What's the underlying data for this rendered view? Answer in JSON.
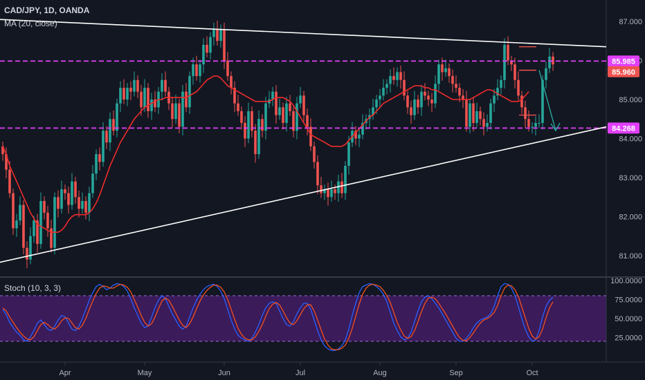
{
  "header": {
    "symbol_line": "CAD/JPY, 1D, OANDA",
    "ma_label": "MA (20, close)",
    "stoch_label": "Stoch (10, 3, 3)"
  },
  "colors": {
    "background": "#131722",
    "up_candle": "#26a69a",
    "down_candle": "#ef5350",
    "ma_line": "#ef2b2b",
    "trendline": "#ffffff",
    "level_line": "#e040fb",
    "arrow": "#26a69a",
    "target_marker": "#ef5350",
    "stoch_k": "#2962ff",
    "stoch_d": "#f4511e",
    "stoch_band": "#4a1d6e",
    "axis_text": "#b2b5be"
  },
  "chart_data": [
    {
      "type": "candlestick",
      "title": "CAD/JPY, 1D, OANDA",
      "overlay": "MA (20, close)",
      "ylim": [
        80.6,
        87.4
      ],
      "y_ticks": [
        "87.000",
        "86.000",
        "85.000",
        "84.000",
        "83.000",
        "82.000",
        "81.000"
      ],
      "x_ticks": [
        "Apr",
        "May",
        "Jun",
        "Jul",
        "Aug",
        "Sep",
        "Oct"
      ],
      "price_labels": [
        {
          "label": "85.985",
          "value": 85.985
        },
        {
          "label": "85.960",
          "value": 85.96
        },
        {
          "label": "84.268",
          "value": 84.268
        }
      ],
      "levels": [
        85.985,
        84.268
      ],
      "close": [
        83.6,
        83.2,
        82.6,
        81.7,
        81.9,
        82.3,
        81.2,
        80.9,
        81.5,
        81.9,
        81.3,
        82.4,
        82.1,
        81.7,
        81.2,
        82.5,
        82.2,
        82.7,
        82.6,
        82.3,
        82.9,
        82.5,
        82.2,
        82.4,
        82.1,
        82.6,
        83.1,
        83.6,
        83.4,
        84.2,
        83.9,
        84.5,
        84.2,
        84.9,
        85.3,
        85.0,
        85.3,
        85.2,
        85.5,
        85.2,
        84.8,
        85.3,
        84.7,
        85.0,
        84.8,
        85.2,
        85.5,
        85.2,
        84.9,
        84.5,
        84.9,
        84.3,
        85.2,
        84.8,
        85.6,
        85.9,
        85.6,
        85.9,
        86.4,
        86.2,
        86.6,
        86.8,
        86.5,
        86.8,
        86.0,
        85.6,
        85.3,
        84.9,
        84.7,
        84.4,
        84.0,
        84.7,
        84.2,
        83.6,
        84.5,
        84.2,
        84.9,
        85.0,
        85.2,
        84.6,
        84.8,
        84.4,
        84.9,
        84.7,
        84.2,
        84.9,
        85.1,
        84.6,
        84.3,
        83.8,
        83.4,
        82.8,
        82.6,
        82.7,
        82.5,
        82.7,
        82.6,
        82.9,
        82.6,
        83.3,
        83.9,
        84.2,
        84.0,
        84.1,
        84.4,
        84.5,
        84.6,
        84.8,
        85.0,
        85.1,
        85.3,
        85.4,
        85.6,
        85.5,
        85.7,
        85.5,
        85.1,
        84.8,
        84.6,
        85.0,
        84.8,
        85.2,
        85.1,
        85.0,
        84.9,
        85.4,
        85.9,
        85.7,
        85.8,
        85.6,
        85.4,
        85.3,
        85.1,
        85.0,
        84.3,
        84.9,
        84.4,
        84.7,
        84.5,
        84.3,
        84.4,
        84.9,
        85.1,
        85.3,
        85.5,
        86.4,
        86.0,
        85.9,
        85.5,
        85.1,
        84.8,
        84.5,
        84.3,
        84.3,
        84.4,
        84.4,
        85.5,
        85.8,
        86.1,
        85.9
      ],
      "ma": [
        83.8,
        83.6,
        83.3,
        83.1,
        82.9,
        82.7,
        82.5,
        82.3,
        82.1,
        81.95,
        81.8,
        81.75,
        81.7,
        81.65,
        81.6,
        81.6,
        81.6,
        81.65,
        81.75,
        81.9,
        82.0,
        82.05,
        82.05,
        82.05,
        82.05,
        82.1,
        82.2,
        82.35,
        82.55,
        82.8,
        83.05,
        83.3,
        83.5,
        83.7,
        83.9,
        84.05,
        84.2,
        84.35,
        84.5,
        84.6,
        84.7,
        84.8,
        84.85,
        84.9,
        84.95,
        85.0,
        85.0,
        85.05,
        85.05,
        85.05,
        85.05,
        85.05,
        85.05,
        85.05,
        85.1,
        85.15,
        85.2,
        85.3,
        85.4,
        85.5,
        85.55,
        85.6,
        85.6,
        85.55,
        85.45,
        85.35,
        85.3,
        85.25,
        85.2,
        85.15,
        85.1,
        85.05,
        85.0,
        84.95,
        84.95,
        84.95,
        84.95,
        84.95,
        85.0,
        85.05,
        85.05,
        85.05,
        85.0,
        84.95,
        84.85,
        84.7,
        84.55,
        84.4,
        84.25,
        84.1,
        84.05,
        84.0,
        83.95,
        83.9,
        83.85,
        83.8,
        83.8,
        83.8,
        83.8,
        83.85,
        83.95,
        84.05,
        84.15,
        84.25,
        84.35,
        84.45,
        84.55,
        84.6,
        84.7,
        84.8,
        84.9,
        84.95,
        85.0,
        85.05,
        85.1,
        85.15,
        85.2,
        85.25,
        85.3,
        85.35,
        85.35,
        85.35,
        85.3,
        85.3,
        85.25,
        85.25,
        85.2,
        85.15,
        85.1,
        85.05,
        85.0,
        85.0,
        85.0,
        85.0,
        85.0,
        85.0,
        85.05,
        85.1,
        85.15,
        85.2,
        85.25,
        85.25,
        85.2,
        85.15,
        85.1,
        85.05,
        85.0,
        84.95,
        84.95,
        84.95,
        85.0,
        85.1,
        85.2
      ]
    },
    {
      "type": "line",
      "title": "Stoch (10, 3, 3)",
      "ylim": [
        0,
        100
      ],
      "y_ticks": [
        "100.0000",
        "75.0000",
        "50.0000",
        "25.0000"
      ],
      "band": [
        20,
        80
      ],
      "series": [
        {
          "values": [
            62,
            55,
            45,
            38,
            32,
            28,
            22,
            20,
            26,
            34,
            44,
            48,
            42,
            36,
            34,
            40,
            48,
            54,
            52,
            44,
            36,
            34,
            40,
            50,
            62,
            74,
            84,
            92,
            95,
            92,
            88,
            90,
            94,
            96,
            95,
            92,
            86,
            76,
            64,
            54,
            44,
            38,
            40,
            52,
            64,
            74,
            80,
            76,
            66,
            56,
            48,
            40,
            36,
            40,
            52,
            64,
            74,
            82,
            88,
            92,
            94,
            95,
            92,
            86,
            76,
            62,
            48,
            36,
            28,
            24,
            22,
            20,
            24,
            32,
            42,
            54,
            64,
            70,
            72,
            70,
            60,
            50,
            42,
            40,
            46,
            56,
            64,
            70,
            70,
            62,
            48,
            34,
            22,
            14,
            10,
            8,
            8,
            10,
            14,
            22,
            36,
            54,
            70,
            84,
            92,
            94,
            96,
            95,
            92,
            88,
            82,
            72,
            58,
            44,
            34,
            26,
            22,
            24,
            32,
            46,
            60,
            72,
            78,
            80,
            76,
            70,
            64,
            56,
            48,
            40,
            32,
            24,
            20,
            20,
            24,
            30,
            38,
            44,
            48,
            50,
            52,
            56,
            66,
            80,
            92,
            96,
            95,
            90,
            80,
            66,
            50,
            36,
            26,
            20,
            22,
            34,
            52,
            66,
            74,
            78
          ]
        },
        {
          "values": [
            64,
            60,
            52,
            45,
            38,
            32,
            27,
            23,
            22,
            26,
            34,
            42,
            45,
            42,
            38,
            36,
            40,
            47,
            51,
            50,
            44,
            38,
            36,
            41,
            50,
            62,
            73,
            83,
            90,
            93,
            92,
            90,
            90,
            93,
            95,
            94,
            91,
            85,
            75,
            65,
            54,
            45,
            40,
            43,
            52,
            63,
            73,
            77,
            74,
            66,
            57,
            48,
            41,
            38,
            43,
            52,
            63,
            73,
            81,
            87,
            91,
            94,
            94,
            91,
            85,
            75,
            62,
            49,
            37,
            29,
            24,
            22,
            22,
            26,
            33,
            42,
            53,
            63,
            69,
            71,
            68,
            60,
            51,
            44,
            42,
            47,
            55,
            63,
            68,
            68,
            60,
            48,
            35,
            23,
            15,
            10,
            9,
            9,
            11,
            15,
            24,
            37,
            53,
            69,
            82,
            90,
            94,
            95,
            94,
            92,
            87,
            80,
            71,
            58,
            45,
            35,
            27,
            24,
            26,
            34,
            46,
            59,
            70,
            77,
            78,
            76,
            70,
            63,
            56,
            48,
            40,
            32,
            25,
            21,
            21,
            25,
            31,
            38,
            44,
            48,
            50,
            53,
            58,
            67,
            80,
            90,
            94,
            93,
            88,
            79,
            65,
            51,
            37,
            27,
            23,
            26,
            36,
            51,
            64,
            72
          ]
        }
      ]
    }
  ]
}
